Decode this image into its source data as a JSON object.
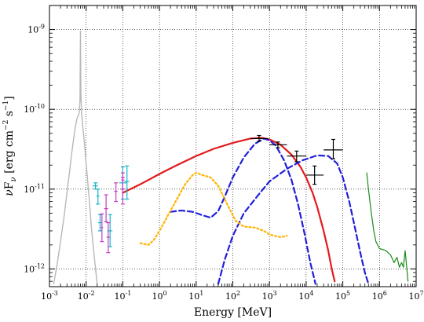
{
  "chart_data": {
    "type": "line",
    "title": "",
    "xlabel": "Energy [MeV]",
    "ylabel": "νF_ν [erg cm^-2 s^-1]",
    "xscale": "log",
    "yscale": "log",
    "xlim": [
      0.001,
      10000000
    ],
    "ylim": [
      6e-13,
      2e-09
    ],
    "grid": true,
    "x_tick_labels": [
      "10-3",
      "10-2",
      "10-1",
      "100",
      "101",
      "102",
      "103",
      "104",
      "105",
      "106",
      "107"
    ],
    "y_tick_labels": [
      "10-12",
      "10-11",
      "10-10",
      "10-9"
    ],
    "series": [
      {
        "style": "gray-solid",
        "color": "#b8b8b8",
        "points": [
          [
            0.0013,
            6.5e-13
          ],
          [
            0.0016,
            1.1e-12
          ],
          [
            0.002,
            2.2e-12
          ],
          [
            0.0025,
            4.5e-12
          ],
          [
            0.003,
            9e-12
          ],
          [
            0.0035,
            1.6e-11
          ],
          [
            0.004,
            2.7e-11
          ],
          [
            0.0045,
            4.1e-11
          ],
          [
            0.005,
            5.8e-11
          ],
          [
            0.0055,
            7.3e-11
          ],
          [
            0.006,
            8.3e-11
          ],
          [
            0.0065,
            9e-11
          ],
          [
            0.0068,
            1.3e-10
          ],
          [
            0.007,
            9.5e-10
          ],
          [
            0.0072,
            1.6e-10
          ],
          [
            0.0075,
            9e-11
          ],
          [
            0.008,
            6.5e-11
          ],
          [
            0.009,
            3.8e-11
          ],
          [
            0.01,
            2.1e-11
          ],
          [
            0.012,
            8e-12
          ],
          [
            0.014,
            3.2e-12
          ],
          [
            0.017,
            1.3e-12
          ],
          [
            0.02,
            6.5e-13
          ]
        ]
      },
      {
        "style": "red-solid",
        "color": "#e31a1c",
        "points": [
          [
            0.1,
            9e-12
          ],
          [
            0.3,
            1.15e-11
          ],
          [
            1,
            1.55e-11
          ],
          [
            3,
            2e-11
          ],
          [
            10,
            2.6e-11
          ],
          [
            30,
            3.2e-11
          ],
          [
            100,
            3.8e-11
          ],
          [
            300,
            4.3e-11
          ],
          [
            600,
            4.4e-11
          ],
          [
            1000,
            4.2e-11
          ],
          [
            2000,
            3.6e-11
          ],
          [
            4000,
            2.7e-11
          ],
          [
            7000,
            1.9e-11
          ],
          [
            10000,
            1.4e-11
          ],
          [
            15000,
            9e-12
          ],
          [
            20000,
            6e-12
          ],
          [
            30000,
            3e-12
          ],
          [
            40000,
            1.7e-12
          ],
          [
            50000,
            1e-12
          ],
          [
            60000,
            7e-13
          ]
        ]
      },
      {
        "style": "blue-dashed",
        "color": "#1f1fdc",
        "points": [
          [
            2,
            5.2e-12
          ],
          [
            4,
            5.4e-12
          ],
          [
            8,
            5.2e-12
          ],
          [
            15,
            4.7e-12
          ],
          [
            25,
            4.4e-12
          ],
          [
            40,
            5.3e-12
          ],
          [
            60,
            8e-12
          ],
          [
            100,
            1.4e-11
          ],
          [
            200,
            2.5e-11
          ],
          [
            400,
            3.7e-11
          ],
          [
            700,
            4.3e-11
          ],
          [
            1000,
            4.1e-11
          ],
          [
            1500,
            3.5e-11
          ],
          [
            2500,
            2.3e-11
          ],
          [
            4000,
            1.3e-11
          ],
          [
            6000,
            6.5e-12
          ],
          [
            9000,
            2.8e-12
          ],
          [
            13000,
            1.2e-12
          ],
          [
            18000,
            6.5e-13
          ]
        ]
      },
      {
        "style": "blue-dashed",
        "color": "#1f1fdc",
        "points": [
          [
            40,
            6.5e-13
          ],
          [
            60,
            1.3e-12
          ],
          [
            100,
            2.6e-12
          ],
          [
            200,
            5e-12
          ],
          [
            500,
            8.5e-12
          ],
          [
            1000,
            1.25e-11
          ],
          [
            3000,
            1.8e-11
          ],
          [
            8000,
            2.3e-11
          ],
          [
            20000,
            2.65e-11
          ],
          [
            40000,
            2.6e-11
          ],
          [
            70000,
            2.1e-11
          ],
          [
            100000,
            1.4e-11
          ],
          [
            150000,
            7e-12
          ],
          [
            200000,
            3.8e-12
          ],
          [
            300000,
            1.6e-12
          ],
          [
            400000,
            9e-13
          ],
          [
            500000,
            6.5e-13
          ]
        ]
      },
      {
        "style": "orange-dotted",
        "color": "#ffb300",
        "points": [
          [
            0.3,
            2.1e-12
          ],
          [
            0.5,
            2e-12
          ],
          [
            0.7,
            2.3e-12
          ],
          [
            1,
            3e-12
          ],
          [
            1.5,
            4.2e-12
          ],
          [
            2,
            5.4e-12
          ],
          [
            3,
            7.5e-12
          ],
          [
            5,
            1.15e-11
          ],
          [
            8,
            1.5e-11
          ],
          [
            10,
            1.6e-11
          ],
          [
            15,
            1.5e-11
          ],
          [
            25,
            1.4e-11
          ],
          [
            40,
            1.1e-11
          ],
          [
            70,
            6.5e-12
          ],
          [
            120,
            4e-12
          ],
          [
            200,
            3.4e-12
          ],
          [
            400,
            3.3e-12
          ],
          [
            700,
            3e-12
          ],
          [
            1000,
            2.7e-12
          ],
          [
            2000,
            2.5e-12
          ],
          [
            3000,
            2.6e-12
          ]
        ]
      },
      {
        "style": "green-solid",
        "color": "#1a8a1a",
        "points": [
          [
            450000,
            1.6e-11
          ],
          [
            500000,
            1e-11
          ],
          [
            600000,
            5e-12
          ],
          [
            700000,
            3e-12
          ],
          [
            800000,
            2.2e-12
          ],
          [
            1000000,
            1.8e-12
          ],
          [
            1500000,
            1.7e-12
          ],
          [
            2000000,
            1.5e-12
          ],
          [
            2500000,
            1.2e-12
          ],
          [
            3000000,
            1.4e-12
          ],
          [
            3500000,
            1.05e-12
          ],
          [
            4000000,
            1.2e-12
          ],
          [
            4500000,
            1.05e-12
          ],
          [
            5000000,
            1.7e-12
          ],
          [
            5300000,
            1.3e-12
          ],
          [
            5700000,
            9e-13
          ],
          [
            6000000,
            7e-13
          ]
        ]
      },
      {
        "style": "cyan-errorbars",
        "color": "#17b4c4",
        "points": [
          {
            "x": 0.018,
            "y": 1.1e-11,
            "xlo": 0.015,
            "xhi": 0.021,
            "ylo": 1e-11,
            "yhi": 1.2e-11
          },
          {
            "x": 0.021,
            "y": 8.2e-12,
            "xlo": 0.019,
            "xhi": 0.023,
            "ylo": 6.5e-12,
            "yhi": 1e-11
          },
          {
            "x": 0.024,
            "y": 3.8e-12,
            "xlo": 0.021,
            "xhi": 0.027,
            "ylo": 3e-12,
            "yhi": 4.8e-12
          },
          {
            "x": 0.045,
            "y": 3e-12,
            "xlo": 0.038,
            "xhi": 0.052,
            "ylo": 1.9e-12,
            "yhi": 4.8e-12
          },
          {
            "x": 0.1,
            "y": 1.2e-11,
            "xlo": 0.08,
            "xhi": 0.125,
            "ylo": 7.5e-12,
            "yhi": 1.9e-11
          },
          {
            "x": 0.13,
            "y": 1.25e-11,
            "xlo": 0.11,
            "xhi": 0.15,
            "ylo": 7.5e-12,
            "yhi": 1.95e-11
          }
        ]
      },
      {
        "style": "magenta-errorbars",
        "color": "#c33ec3",
        "points": [
          {
            "x": 0.027,
            "y": 3.3e-12,
            "xlo": 0.025,
            "xhi": 0.029,
            "ylo": 2.2e-12,
            "yhi": 4.9e-12
          },
          {
            "x": 0.035,
            "y": 5.7e-12,
            "xlo": 0.031,
            "xhi": 0.04,
            "ylo": 3.9e-12,
            "yhi": 8.5e-12
          },
          {
            "x": 0.04,
            "y": 2.5e-12,
            "xlo": 0.036,
            "xhi": 0.044,
            "ylo": 1.6e-12,
            "yhi": 3.8e-12
          },
          {
            "x": 0.065,
            "y": 9.4e-12,
            "xlo": 0.058,
            "xhi": 0.072,
            "ylo": 7e-12,
            "yhi": 1.2e-11
          },
          {
            "x": 0.1,
            "y": 1e-11,
            "xlo": 0.09,
            "xhi": 0.11,
            "ylo": 6.5e-12,
            "yhi": 1.4e-11
          },
          {
            "x": 0.1,
            "y": 1.3e-11,
            "xlo": 0.09,
            "xhi": 0.11,
            "ylo": 1e-11,
            "yhi": 1.6e-11
          }
        ]
      },
      {
        "style": "black-errorbars",
        "color": "#000000",
        "points": [
          {
            "x": 520,
            "y": 4.3e-11,
            "xlo": 300,
            "xhi": 900,
            "ylo": 4e-11,
            "yhi": 4.7e-11
          },
          {
            "x": 1700,
            "y": 3.6e-11,
            "xlo": 1000,
            "xhi": 3000,
            "ylo": 3.3e-11,
            "yhi": 3.9e-11
          },
          {
            "x": 5500,
            "y": 2.6e-11,
            "xlo": 3000,
            "xhi": 10000,
            "ylo": 2.2e-11,
            "yhi": 3e-11
          },
          {
            "x": 17000,
            "y": 1.5e-11,
            "xlo": 10000,
            "xhi": 30000,
            "ylo": 1.15e-11,
            "yhi": 1.95e-11
          },
          {
            "x": 55000,
            "y": 3.1e-11,
            "xlo": 30000,
            "xhi": 100000,
            "ylo": 2.4e-11,
            "yhi": 4.2e-11
          }
        ]
      }
    ]
  }
}
